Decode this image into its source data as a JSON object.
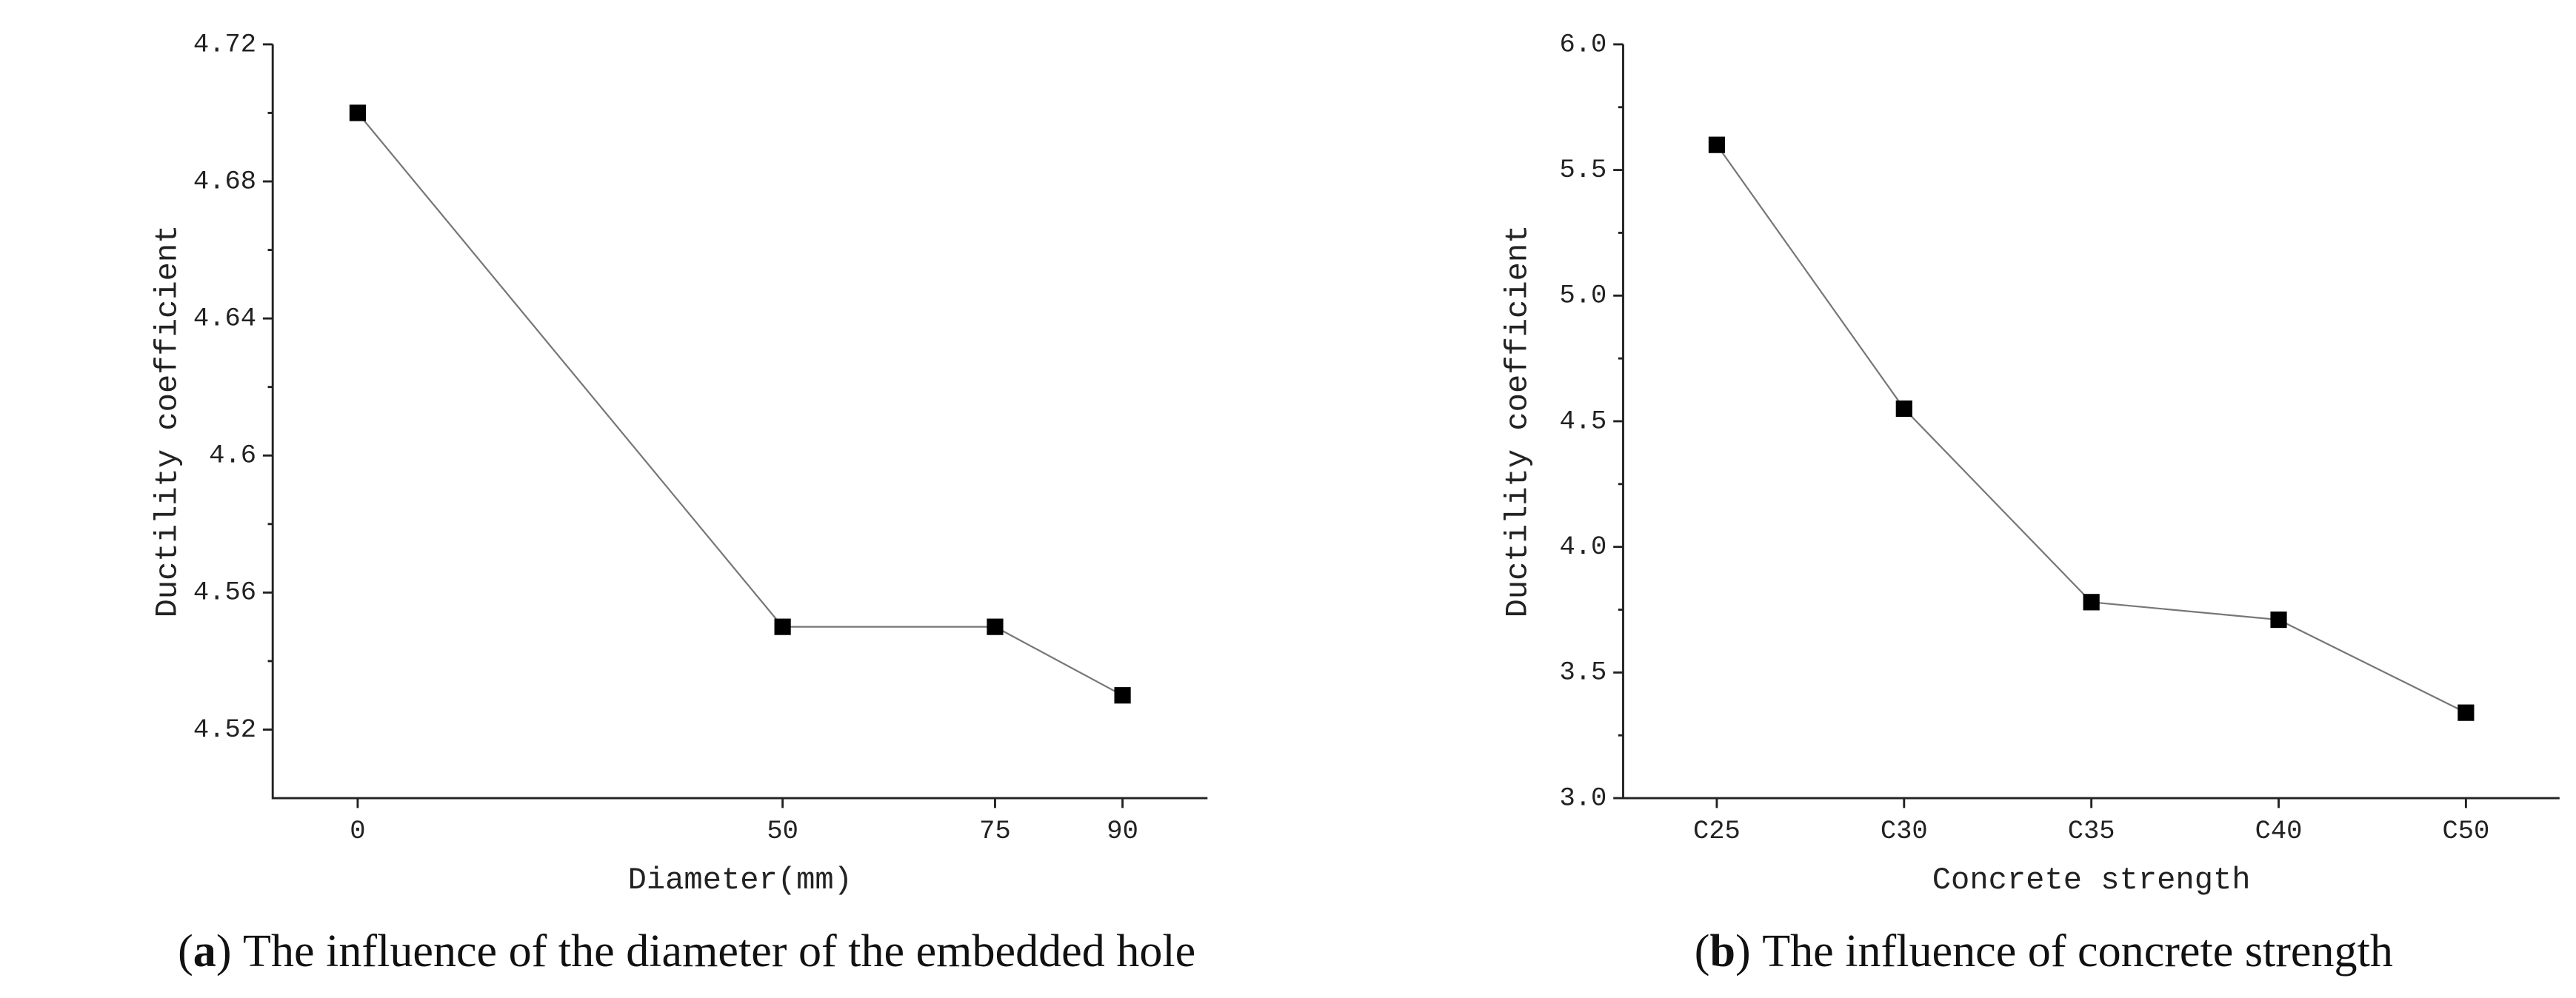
{
  "chart_data": [
    {
      "type": "line",
      "x_label": "Diameter(mm)",
      "y_label": "Ductility coefficient",
      "x": [
        0,
        50,
        75,
        90
      ],
      "xlim": [
        -10,
        100
      ],
      "xticks": [
        0,
        50,
        75,
        90
      ],
      "series": [
        {
          "color": "#777777",
          "values": [
            4.7,
            4.55,
            4.55,
            4.53
          ]
        }
      ],
      "ylim": [
        4.5,
        4.72
      ],
      "yticks": [
        4.52,
        4.56,
        4.6,
        4.64,
        4.68,
        4.72
      ],
      "caption": {
        "label": "a",
        "text": "The influence of the diameter of the embedded hole"
      }
    },
    {
      "type": "line",
      "x_label": "Concrete strength",
      "y_label": "Ductility coefficient",
      "categories": [
        "C25",
        "C30",
        "C35",
        "C40",
        "C50"
      ],
      "series": [
        {
          "color": "#777777",
          "values": [
            5.6,
            4.55,
            3.78,
            3.71,
            3.34
          ]
        }
      ],
      "ylim": [
        3,
        6
      ],
      "yticks": [
        {
          "value": 3,
          "label": "3.0"
        },
        {
          "value": 3.5,
          "label": "3.5"
        },
        {
          "value": 4,
          "label": "4.0"
        },
        {
          "value": 4.5,
          "label": "4.5"
        },
        {
          "value": 5,
          "label": "5.0"
        },
        {
          "value": 5.5,
          "label": "5.5"
        },
        {
          "value": 6,
          "label": "6.0"
        }
      ],
      "caption": {
        "label": "b",
        "text": "The influence of concrete strength"
      }
    }
  ]
}
